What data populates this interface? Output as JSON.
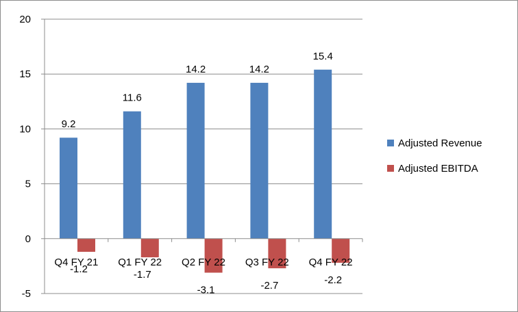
{
  "chart_data": {
    "type": "bar",
    "categories": [
      "Q4 FY 21",
      "Q1 FY 22",
      "Q2 FY 22",
      "Q3 FY 22",
      "Q4 FY 22"
    ],
    "series": [
      {
        "name": "Adjusted Revenue",
        "values": [
          9.2,
          11.6,
          14.2,
          14.2,
          15.4
        ],
        "color": "#4f81bd"
      },
      {
        "name": "Adjusted EBITDA",
        "values": [
          -1.2,
          -1.7,
          -3.1,
          -2.7,
          -2.2
        ],
        "color": "#c0504d"
      }
    ],
    "data_labels": {
      "Adjusted Revenue": [
        "9.2",
        "11.6",
        "14.2",
        "14.2",
        "15.4"
      ],
      "Adjusted EBITDA": [
        "-1.2",
        "-1.7",
        "-3.1",
        "-2.7",
        "-2.2"
      ]
    },
    "yticks": [
      "-5",
      "0",
      "5",
      "10",
      "15",
      "20"
    ],
    "ylim": [
      -5,
      20
    ],
    "title": "",
    "xlabel": "",
    "ylabel": "",
    "grid": true,
    "legend_position": "right"
  }
}
